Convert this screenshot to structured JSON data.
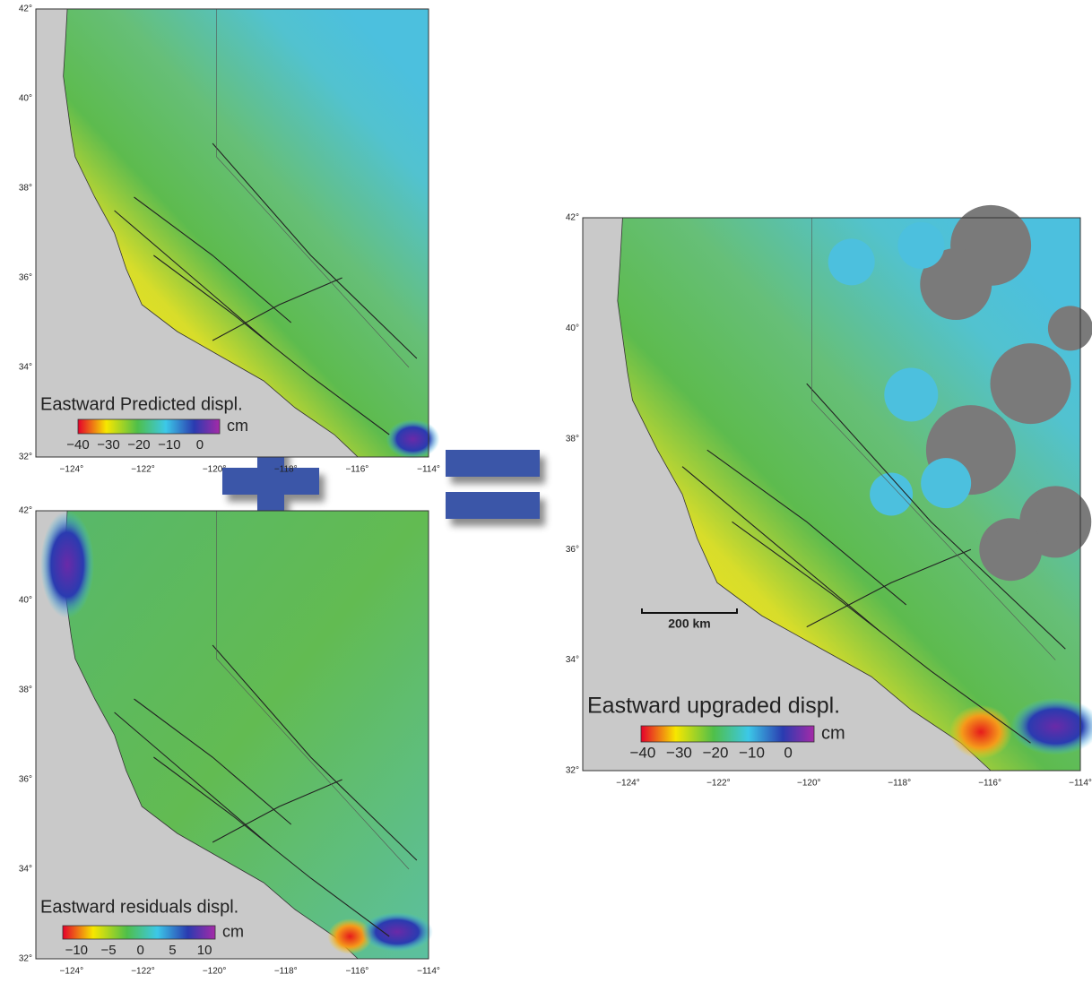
{
  "panels": [
    {
      "title": "Eastward Predicted displ.",
      "unit": "cm",
      "colorbar_ticks": [
        "−40",
        "−30",
        "−20",
        "−10",
        "0"
      ],
      "lat_ticks": [
        "42°",
        "40°",
        "38°",
        "36°",
        "34°",
        "32°"
      ],
      "lon_ticks": [
        "−124°",
        "−122°",
        "−120°",
        "−118°",
        "−116°",
        "−114°"
      ]
    },
    {
      "title": "Eastward residuals displ.",
      "unit": "cm",
      "colorbar_ticks": [
        "−10",
        "−5",
        "0",
        "5",
        "10"
      ],
      "lat_ticks": [
        "42°",
        "40°",
        "38°",
        "36°",
        "34°",
        "32°"
      ],
      "lon_ticks": [
        "−124°",
        "−122°",
        "−120°",
        "−118°",
        "−116°",
        "−114°"
      ]
    },
    {
      "title": "Eastward upgraded displ.",
      "unit": "cm",
      "colorbar_ticks": [
        "−40",
        "−30",
        "−20",
        "−10",
        "0"
      ],
      "lat_ticks": [
        "42°",
        "40°",
        "38°",
        "36°",
        "34°",
        "32°"
      ],
      "lon_ticks": [
        "−124°",
        "−122°",
        "−120°",
        "−118°",
        "−116°",
        "−114°"
      ]
    }
  ],
  "scale_bar": "200 km"
}
